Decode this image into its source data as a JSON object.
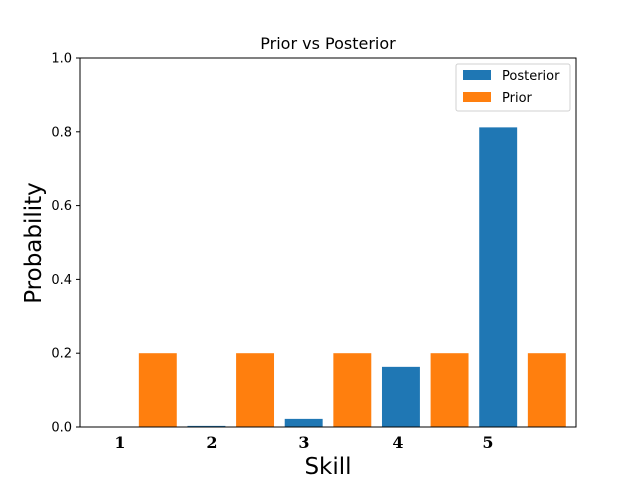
{
  "chart_data": {
    "type": "bar",
    "title": "Prior vs Posterior",
    "xlabel": "Skill",
    "ylabel": "Probability",
    "categories": [
      "1",
      "2",
      "3",
      "4",
      "5"
    ],
    "ylim": [
      0,
      1.0
    ],
    "yticks": [
      "0.0",
      "0.2",
      "0.4",
      "0.6",
      "0.8",
      "1.0"
    ],
    "legend_position": "top-right",
    "grid": false,
    "series": [
      {
        "name": "Posterior",
        "color": "#1f77b4",
        "values": [
          0.0,
          0.003,
          0.022,
          0.163,
          0.812
        ]
      },
      {
        "name": "Prior",
        "color": "#ff7f0e",
        "values": [
          0.2,
          0.2,
          0.2,
          0.2,
          0.2
        ]
      }
    ]
  }
}
